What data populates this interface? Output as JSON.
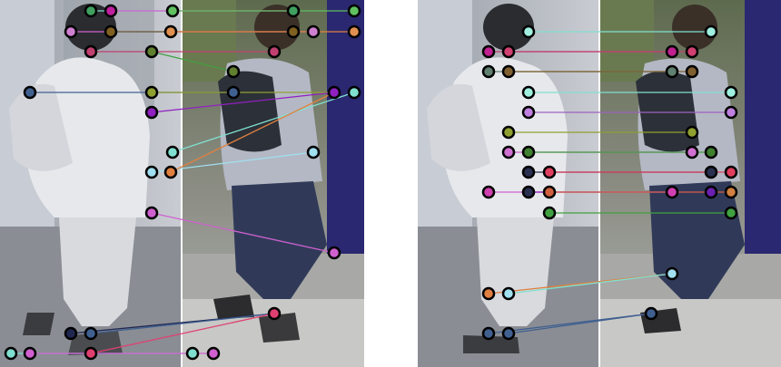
{
  "panels": [
    {
      "pair_left": "grayscale-pedestrian-frame",
      "pair_right": "color-pedestrian-frame",
      "match_count": 19,
      "colors": [
        "#80e0d0",
        "#d060d0",
        "#c04070",
        "#808020",
        "#406090",
        "#9020c0",
        "#a0e0f0",
        "#e08040",
        "#202850",
        "#e04070",
        "#40a060"
      ]
    },
    {
      "pair_left": "grayscale-pedestrian-frame",
      "pair_right": "color-pedestrian-frame",
      "match_count": 17,
      "colors": [
        "#80e0d0",
        "#c04070",
        "#608070",
        "#a060c0",
        "#90a030",
        "#2a3050",
        "#e04060",
        "#d06040",
        "#40a040",
        "#e08040",
        "#406090"
      ]
    }
  ]
}
